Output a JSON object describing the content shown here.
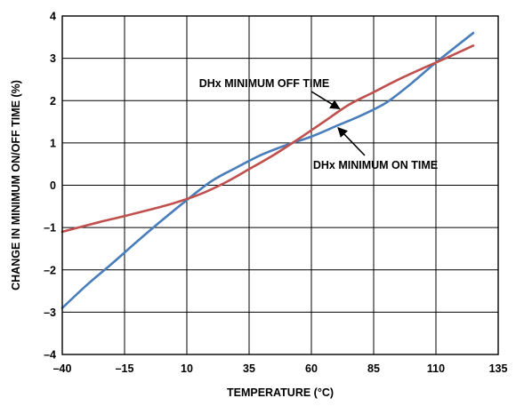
{
  "chart_data": {
    "type": "line",
    "title": "",
    "xlabel": "TEMPERATURE (°C)",
    "ylabel": "CHANGE IN MINIMUM ON/OFF TIME (%)",
    "xlim": [
      -40,
      135
    ],
    "ylim": [
      -4,
      4
    ],
    "x_ticks": [
      -40,
      -15,
      10,
      35,
      60,
      85,
      110,
      135
    ],
    "x_tick_labels": [
      "–40",
      "–15",
      "10",
      "35",
      "60",
      "85",
      "110",
      "135"
    ],
    "y_ticks": [
      -4,
      -3,
      -2,
      -1,
      0,
      1,
      2,
      3,
      4
    ],
    "y_tick_labels": [
      "–4",
      "–3",
      "–2",
      "–1",
      "0",
      "1",
      "2",
      "3",
      "4"
    ],
    "grid": true,
    "legend": "none",
    "series": [
      {
        "name": "DHx MINIMUM OFF TIME",
        "color": "#c0504d",
        "x": [
          -40,
          -25,
          -15,
          -5,
          5,
          15,
          25,
          35,
          45,
          55,
          65,
          75,
          85,
          95,
          105,
          115,
          125
        ],
        "y": [
          -1.1,
          -0.87,
          -0.73,
          -0.58,
          -0.42,
          -0.22,
          0.05,
          0.38,
          0.72,
          1.1,
          1.5,
          1.9,
          2.2,
          2.5,
          2.77,
          3.03,
          3.3
        ]
      },
      {
        "name": "DHx MINIMUM ON TIME",
        "color": "#4a7ebb",
        "x": [
          -40,
          -30,
          -20,
          -10,
          0,
          10,
          20,
          30,
          40,
          50,
          60,
          70,
          80,
          90,
          100,
          110,
          125
        ],
        "y": [
          -2.9,
          -2.35,
          -1.85,
          -1.33,
          -0.83,
          -0.35,
          0.1,
          0.42,
          0.72,
          0.95,
          1.15,
          1.4,
          1.65,
          1.95,
          2.4,
          2.9,
          3.6
        ]
      }
    ],
    "annotations": [
      {
        "text": "DHx MINIMUM OFF TIME",
        "series": 0,
        "x": 72,
        "y": 1.85
      },
      {
        "text": "DHx MINIMUM ON TIME",
        "series": 1,
        "x": 70,
        "y": 1.4
      }
    ]
  }
}
